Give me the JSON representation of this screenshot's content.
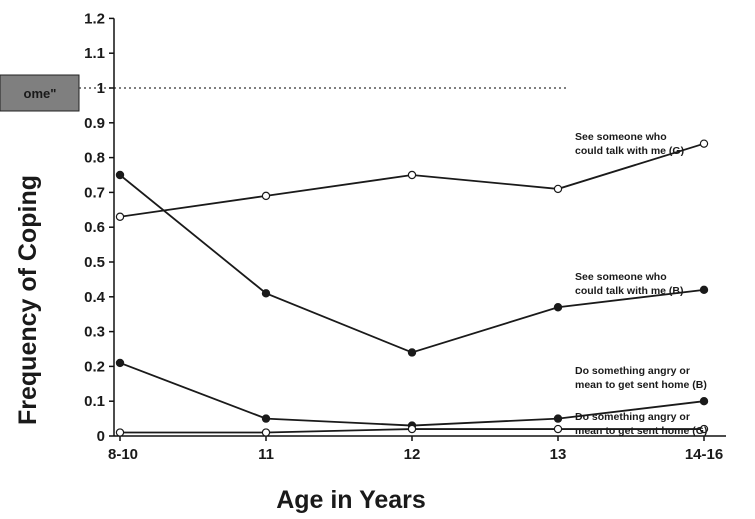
{
  "chart_data": {
    "type": "line",
    "title": "",
    "xlabel": "Age in Years",
    "ylabel": "Frequency of Coping",
    "categories": [
      "8-10",
      "11",
      "12",
      "13",
      "14-16"
    ],
    "ylim": [
      0,
      1.2
    ],
    "yticks": [
      "0",
      "0.1",
      "0.2",
      "0.3",
      "0.4",
      "0.5",
      "0.6",
      "0.7",
      "0.8",
      "0.9",
      "1",
      "1.1",
      "1.2"
    ],
    "reference_line": {
      "value": 1,
      "label": "ome\"",
      "style": "dotted"
    },
    "grid": false,
    "legend": "inline-right",
    "series": [
      {
        "name": "See someone who could talk with me (G)",
        "label_lines": [
          "See someone who",
          "could talk with me (G)"
        ],
        "marker": "open",
        "values": [
          0.63,
          0.69,
          0.75,
          0.71,
          0.84
        ]
      },
      {
        "name": "See someone who could talk with me (B)",
        "label_lines": [
          "See someone who",
          "could talk with me (B)"
        ],
        "marker": "filled",
        "values": [
          0.75,
          0.41,
          0.24,
          0.37,
          0.42
        ]
      },
      {
        "name": "Do something angry or mean to get sent home (B)",
        "label_lines": [
          "Do something angry or",
          "mean to get sent home (B)"
        ],
        "marker": "filled",
        "values": [
          0.21,
          0.05,
          0.03,
          0.05,
          0.1
        ]
      },
      {
        "name": "Do something angry or mean to get sent home (G)",
        "label_lines": [
          "Do something angry or",
          "mean to get sent home (G)"
        ],
        "marker": "open",
        "values": [
          0.01,
          0.01,
          0.02,
          0.02,
          0.02
        ]
      }
    ]
  }
}
